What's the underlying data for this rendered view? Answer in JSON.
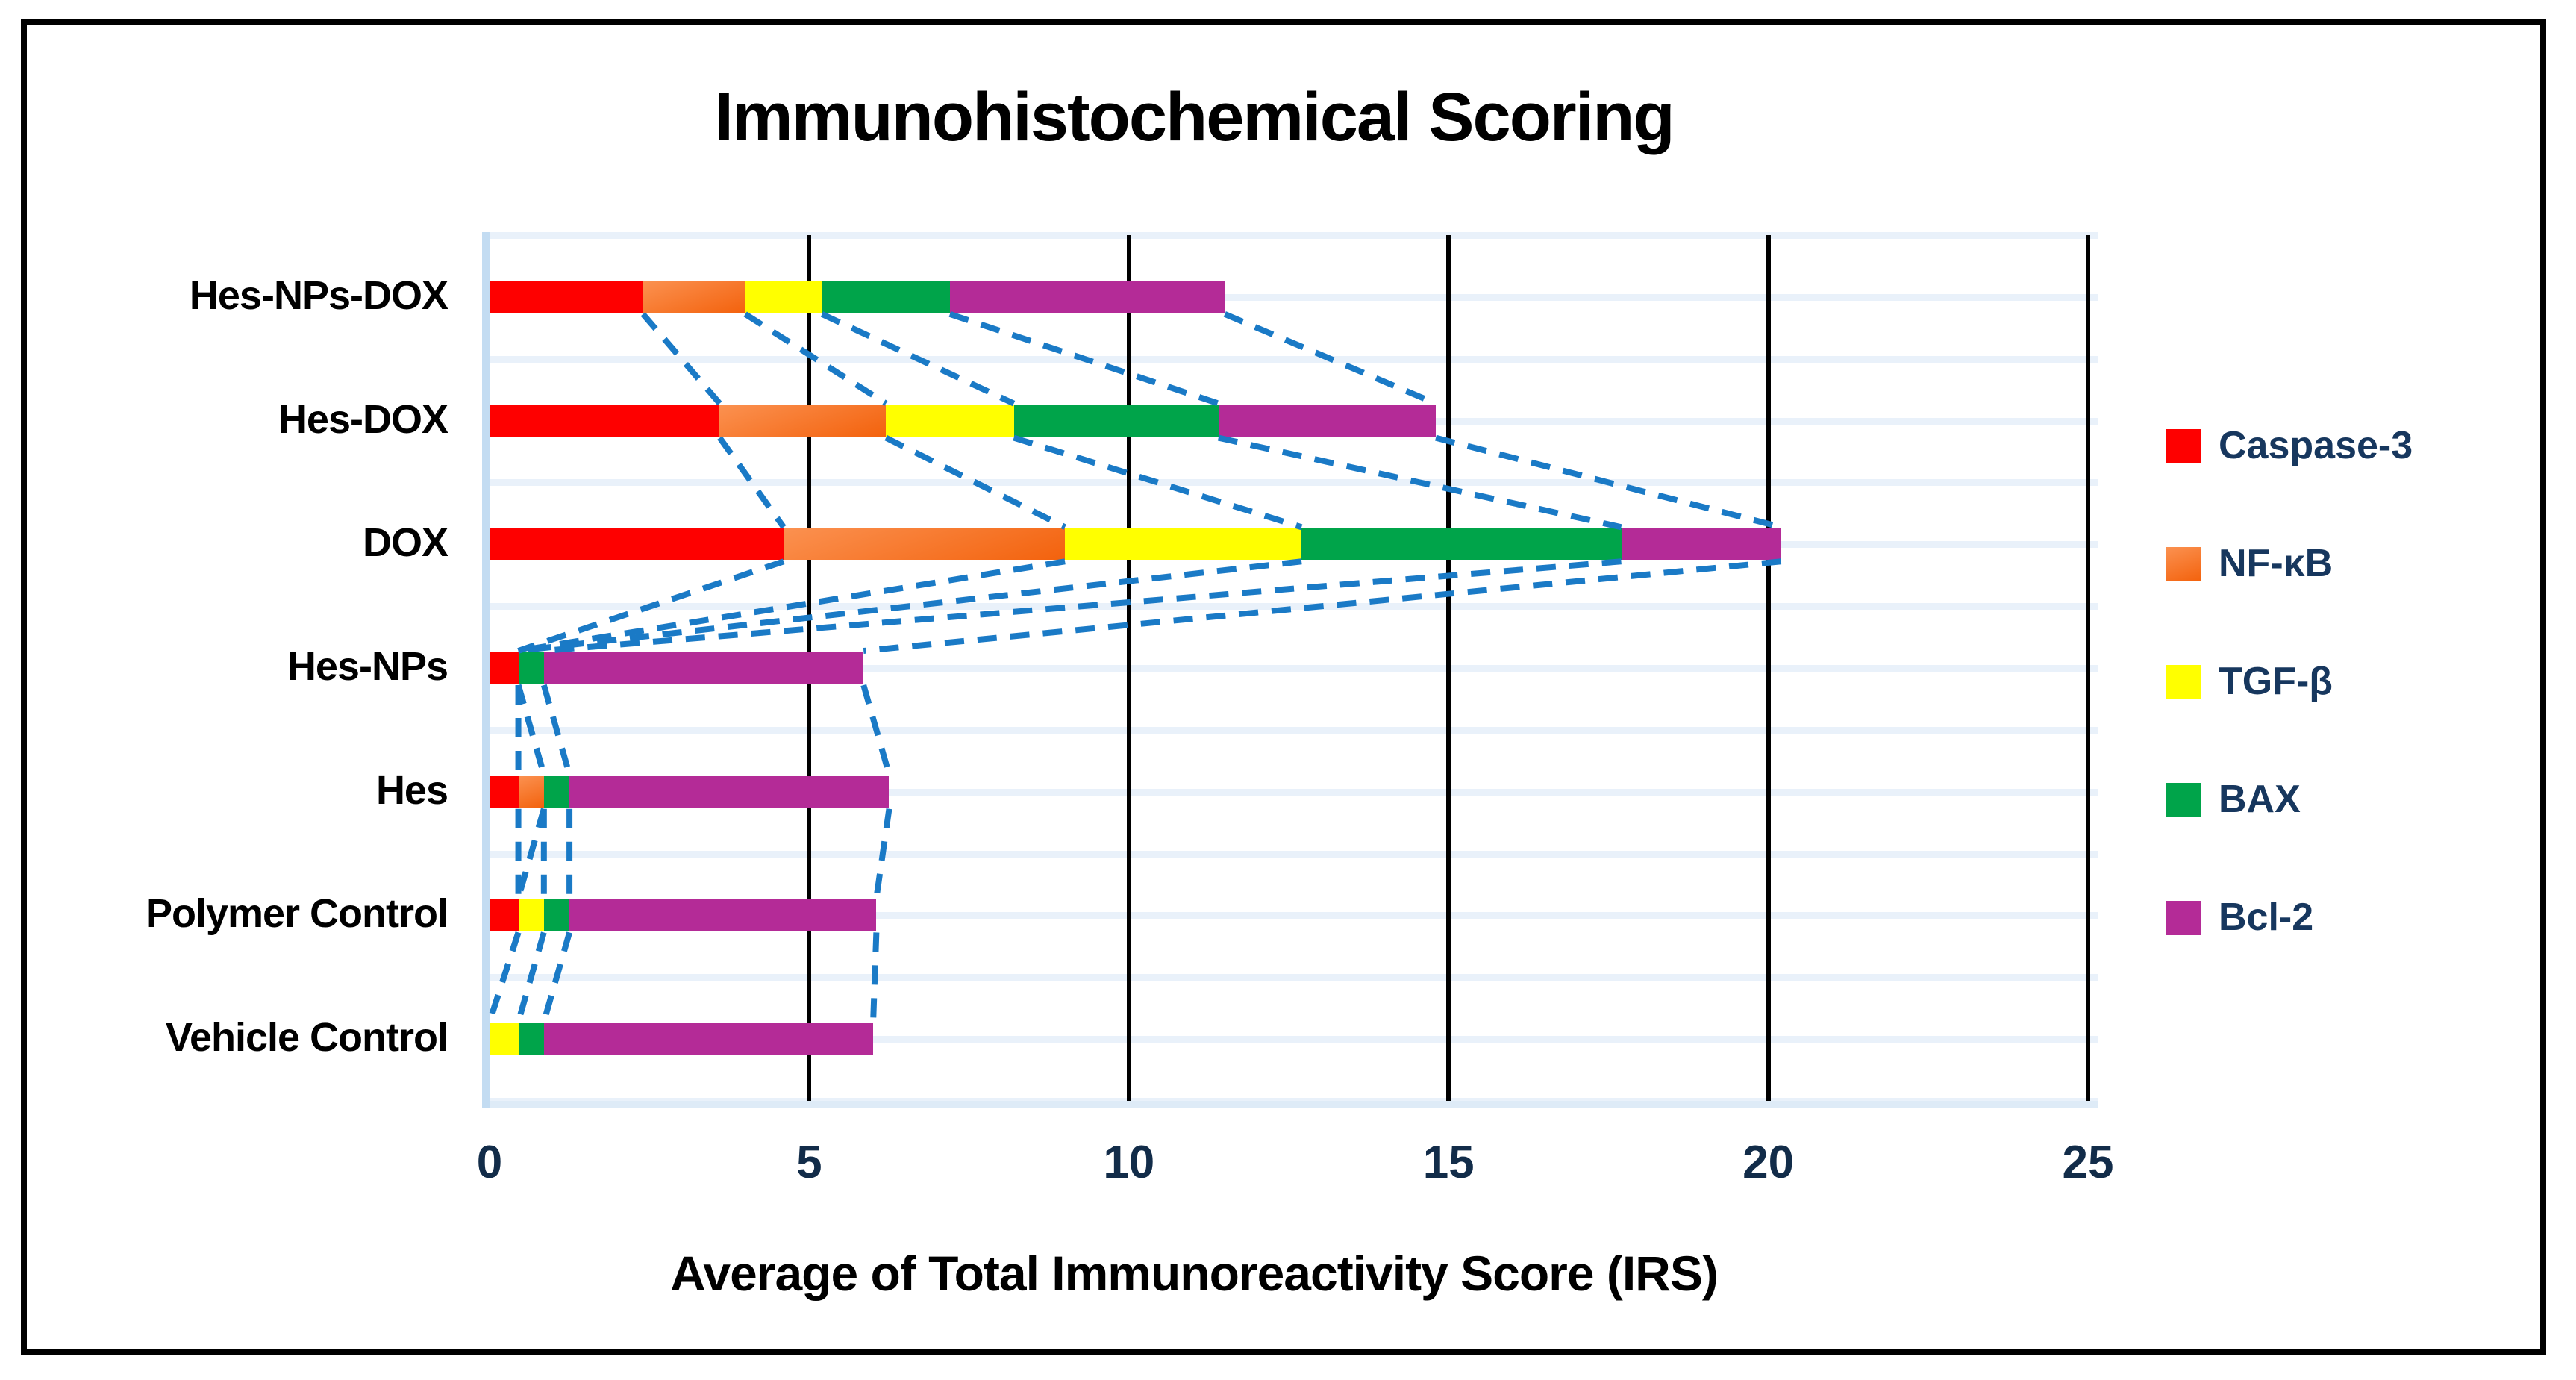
{
  "title": "Immunohistochemical Scoring",
  "chart_data": {
    "type": "bar",
    "stacked": true,
    "orientation": "horizontal",
    "title": "Immunohistochemical Scoring",
    "xlabel": "Average of Total Immunoreactivity Score (IRS)",
    "ylabel": "",
    "xlim": [
      0,
      25
    ],
    "xticks": [
      "0",
      "5",
      "10",
      "15",
      "20",
      "25"
    ],
    "xtick_values": [
      0,
      5,
      10,
      15,
      20,
      25
    ],
    "grid": "vertical-black-major, horizontal-lightblue-minor",
    "legend_position": "right",
    "series_connector_lines": true,
    "categories": [
      "Hes-NPs-DOX",
      "Hes-DOX",
      "DOX",
      "Hes-NPs",
      "Hes",
      "Polymer Control",
      "Vehicle Control"
    ],
    "series": [
      {
        "name": "Caspase-3",
        "color": "#FE0000",
        "color2": "#FE0000",
        "values": [
          2.4,
          3.6,
          4.6,
          0.45,
          0.45,
          0.45,
          0
        ]
      },
      {
        "name": "NF-κB",
        "color": "#FB9150",
        "color2": "#F3620D",
        "values": [
          1.6,
          2.6,
          4.4,
          0,
          0.4,
          0,
          0
        ]
      },
      {
        "name": "TGF-β",
        "color": "#FFFF00",
        "color2": "#FFFF00",
        "values": [
          1.2,
          2.0,
          3.7,
          0,
          0,
          0.4,
          0.45
        ]
      },
      {
        "name": "BAX",
        "color": "#00A44A",
        "color2": "#00A44A",
        "values": [
          2.0,
          3.2,
          5.0,
          0.4,
          0.4,
          0.4,
          0.4
        ]
      },
      {
        "name": "Bcl-2",
        "color": "#B42B97",
        "color2": "#B42B97",
        "values": [
          4.3,
          3.4,
          2.5,
          5.0,
          5.0,
          4.8,
          5.15
        ]
      }
    ],
    "totals": [
      11.5,
      14.8,
      20.2,
      5.85,
      6.25,
      6.05,
      6.0
    ],
    "connector_color": "#1A7AC6",
    "plot_border_color": "#C3DCF2",
    "tick_label_color": "#122C49",
    "legend_text_color": "#17375E"
  }
}
